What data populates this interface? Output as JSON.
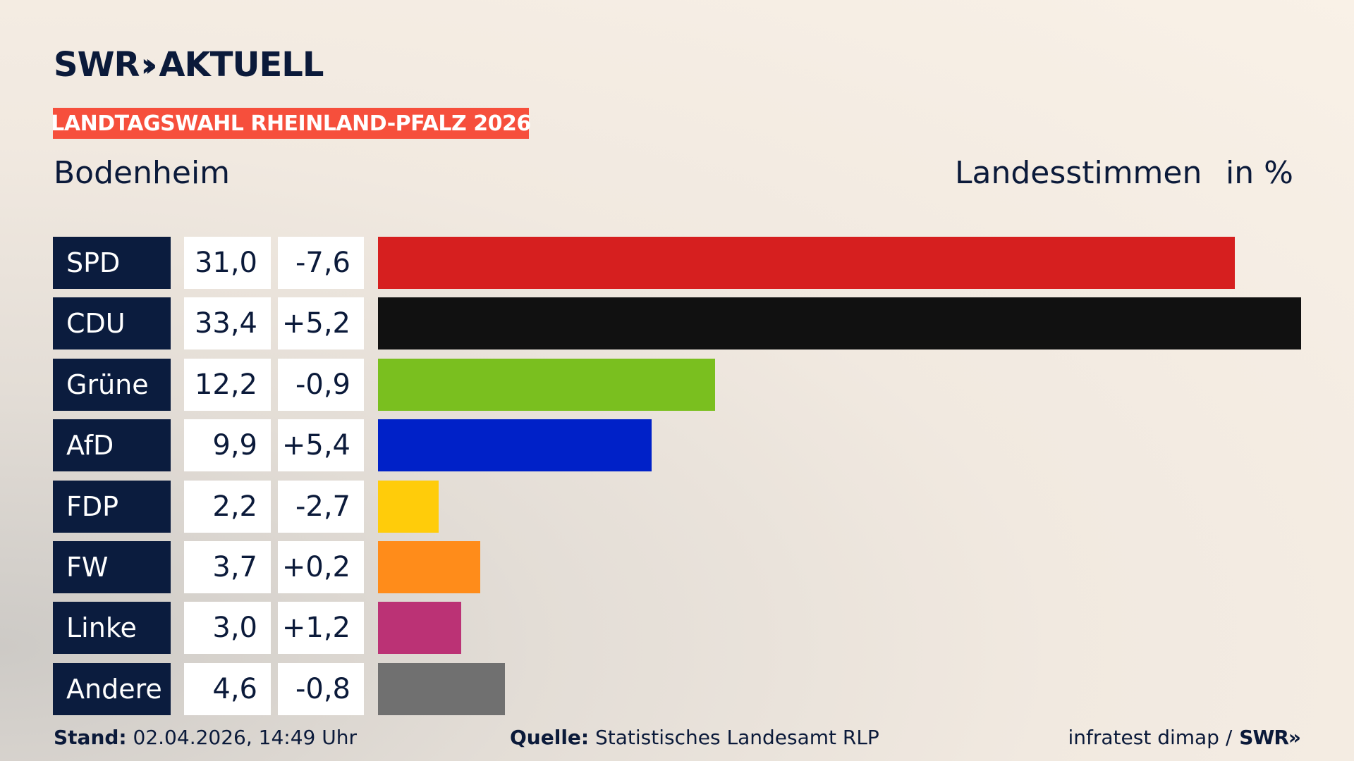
{
  "brand": {
    "name": "SWR",
    "chevrons": "»",
    "product": "AKTUELL"
  },
  "badge": "LANDTAGSWAHL RHEINLAND-PFALZ 2026",
  "location": "Bodenheim",
  "metric": "Landesstimmen",
  "unit": "in %",
  "chart_data": {
    "type": "bar",
    "orientation": "horizontal",
    "categories": [
      "SPD",
      "CDU",
      "Grüne",
      "AfD",
      "FDP",
      "FW",
      "Linke",
      "Andere"
    ],
    "series": [
      {
        "values": [
          31.0,
          33.4,
          12.2,
          9.9,
          2.2,
          3.7,
          3.0,
          4.6
        ]
      }
    ],
    "values_text": [
      "31,0",
      "33,4",
      "12,2",
      "9,9",
      "2,2",
      "3,7",
      "3,0",
      "4,6"
    ],
    "changes_text": [
      "-7,6",
      "+5,2",
      "-0,9",
      "+5,4",
      "-2,7",
      "+0,2",
      "+1,2",
      "-0,8"
    ],
    "colors": [
      "#d61f1f",
      "#111111",
      "#7abf1f",
      "#0021c8",
      "#ffcc0a",
      "#ff8c1a",
      "#bb3275",
      "#707070"
    ],
    "xlim": [
      0,
      33.4
    ]
  },
  "footer": {
    "stand_label": "Stand:",
    "stand_value": "02.04.2026, 14:49 Uhr",
    "source_label": "Quelle:",
    "source_value": "Statistisches Landesamt RLP",
    "credit": "infratest dimap /",
    "credit_brand": "SWR»"
  }
}
